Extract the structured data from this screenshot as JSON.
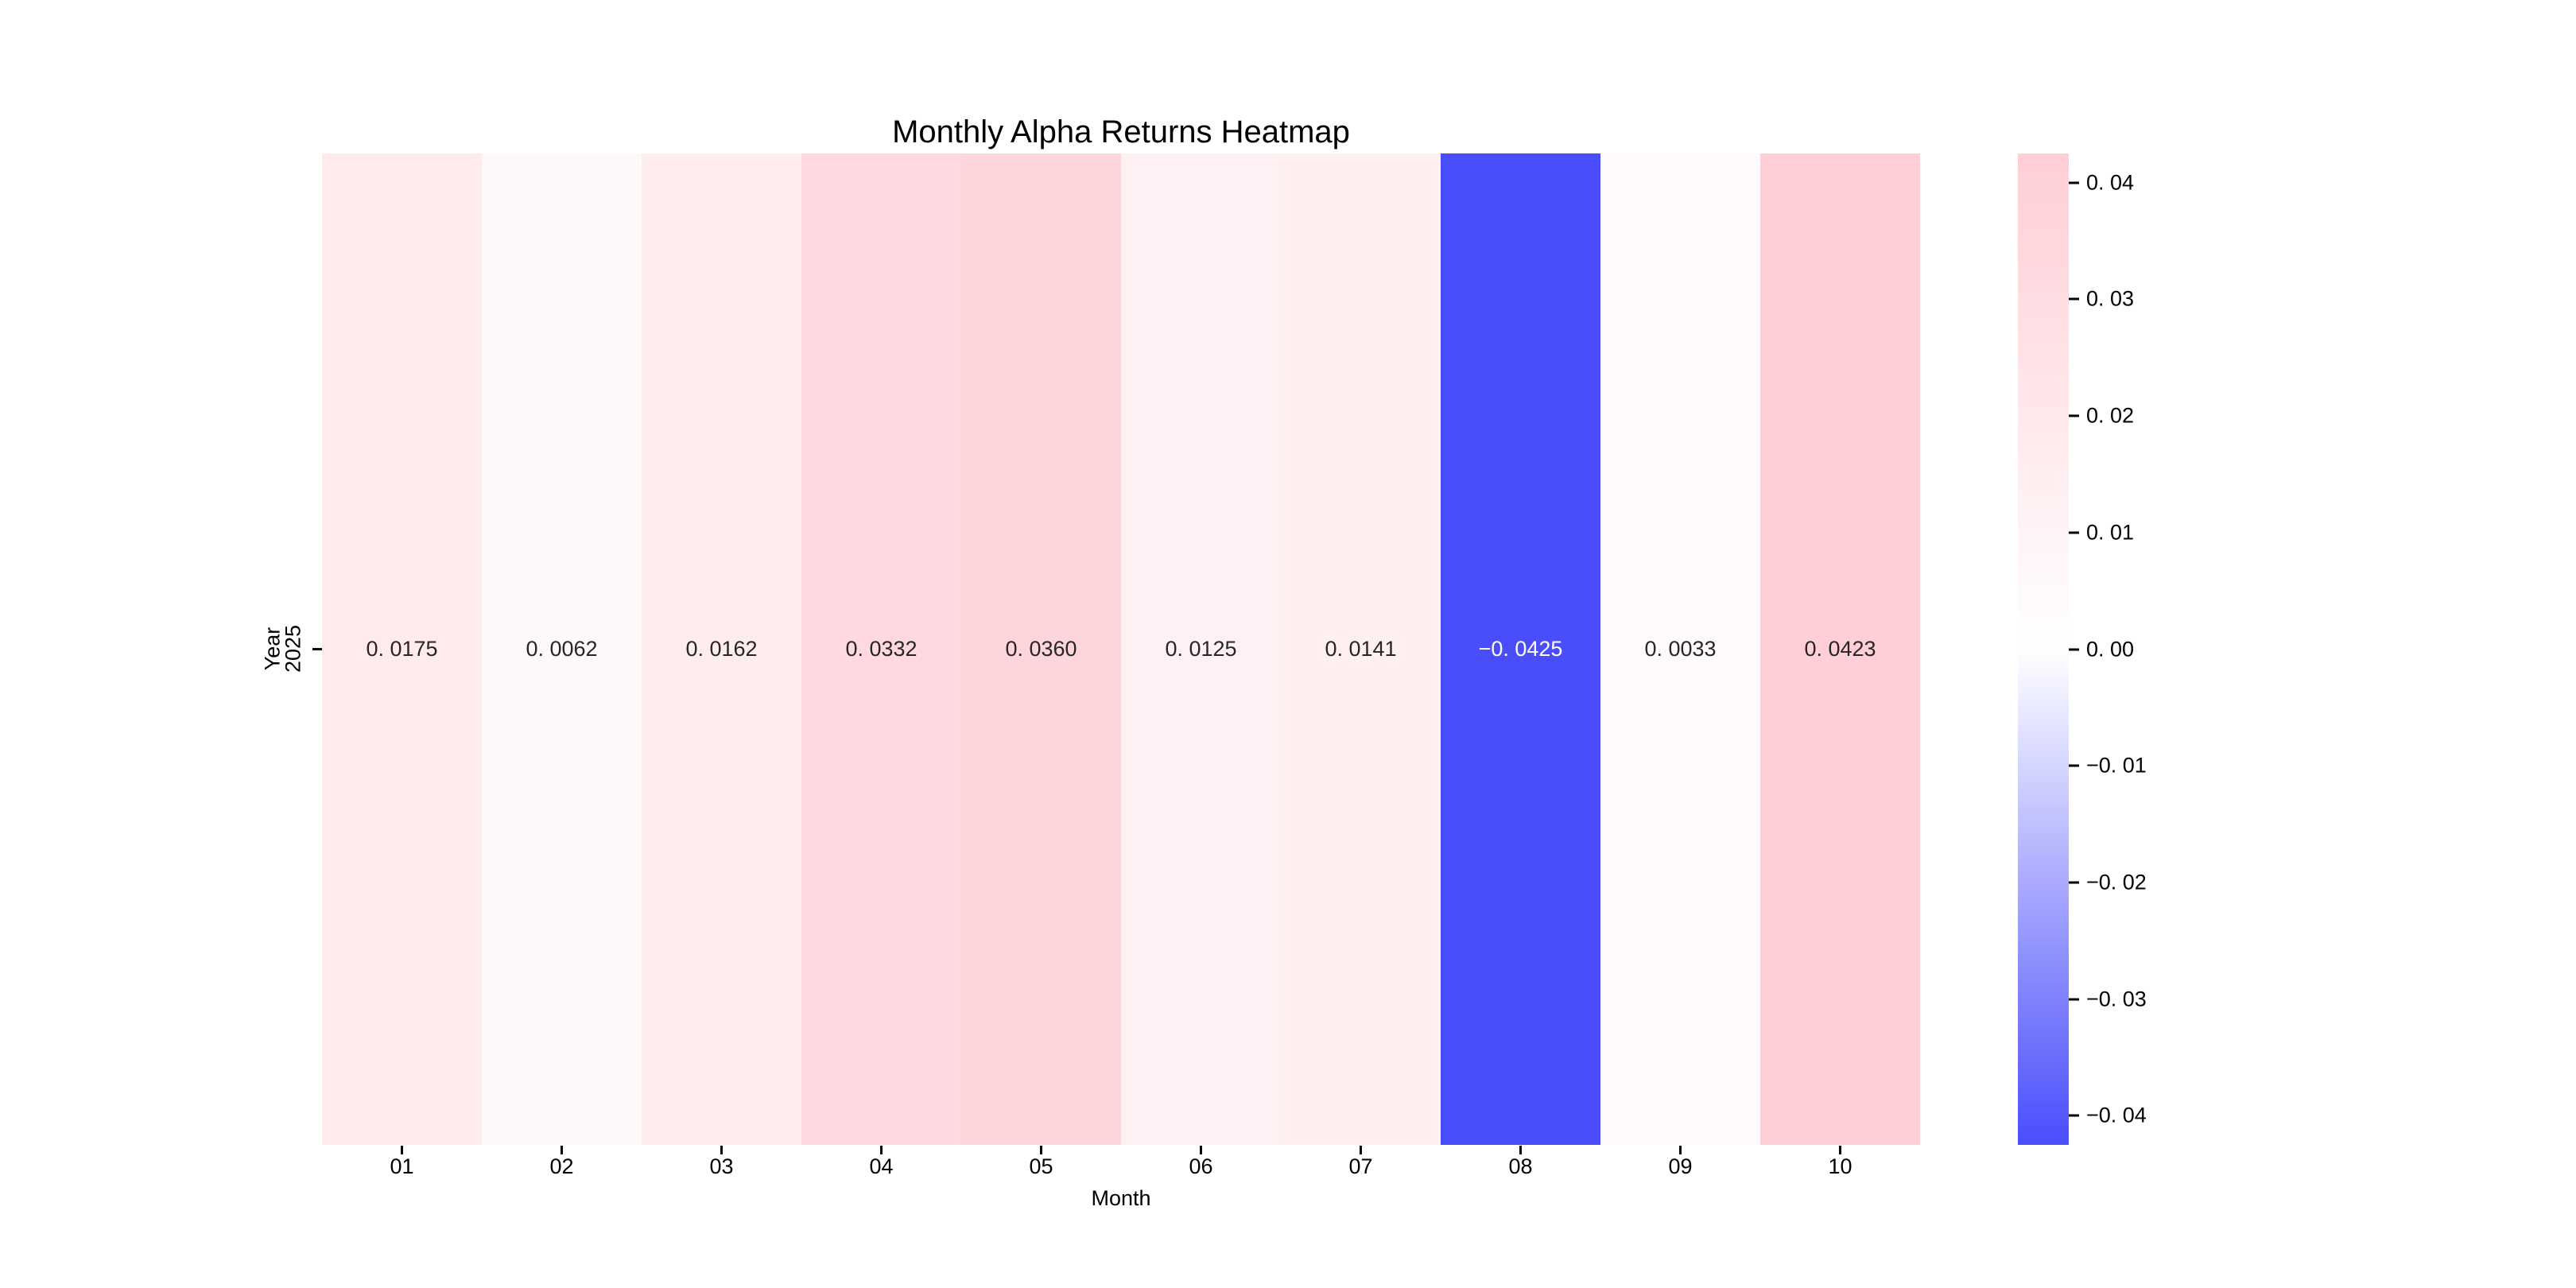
{
  "title": "Monthly Alpha Returns Heatmap",
  "axes": {
    "xlabel": "Month",
    "ylabel": "Year",
    "y_tick": "2025"
  },
  "heatmap": {
    "columns": [
      {
        "month": "01",
        "value": 0.0175,
        "label": "0. 0175"
      },
      {
        "month": "02",
        "value": 0.0062,
        "label": "0. 0062"
      },
      {
        "month": "03",
        "value": 0.0162,
        "label": "0. 0162"
      },
      {
        "month": "04",
        "value": 0.0332,
        "label": "0. 0332"
      },
      {
        "month": "05",
        "value": 0.036,
        "label": "0. 0360"
      },
      {
        "month": "06",
        "value": 0.0125,
        "label": "0. 0125"
      },
      {
        "month": "07",
        "value": 0.0141,
        "label": "0. 0141"
      },
      {
        "month": "08",
        "value": -0.0425,
        "label": "−0. 0425"
      },
      {
        "month": "09",
        "value": 0.0033,
        "label": "0. 0033"
      },
      {
        "month": "10",
        "value": 0.0423,
        "label": "0. 0423"
      }
    ]
  },
  "colorbar": {
    "vmax": 0.0425,
    "vmin": -0.0425,
    "ticks": [
      {
        "value": 0.04,
        "label": "0. 04"
      },
      {
        "value": 0.03,
        "label": "0. 03"
      },
      {
        "value": 0.02,
        "label": "0. 02"
      },
      {
        "value": 0.01,
        "label": "0. 01"
      },
      {
        "value": 0.0,
        "label": "0. 00"
      },
      {
        "value": -0.01,
        "label": "−0. 01"
      },
      {
        "value": -0.02,
        "label": "−0. 02"
      },
      {
        "value": -0.03,
        "label": "−0. 03"
      },
      {
        "value": -0.04,
        "label": "−0. 04"
      }
    ]
  },
  "colors": {
    "positive_end": "#FFCED6",
    "midpoint": "#FFFFFF",
    "negative_end": "#4A4DFC",
    "annot_dark": "#262626",
    "annot_light": "#FFFFFF",
    "axis_text": "#000000"
  },
  "chart_data": {
    "type": "heatmap",
    "title": "Monthly Alpha Returns Heatmap",
    "xlabel": "Month",
    "ylabel": "Year",
    "x_categories": [
      "01",
      "02",
      "03",
      "04",
      "05",
      "06",
      "07",
      "08",
      "09",
      "10"
    ],
    "y_categories": [
      "2025"
    ],
    "values": [
      [
        0.0175,
        0.0062,
        0.0162,
        0.0332,
        0.036,
        0.0125,
        0.0141,
        -0.0425,
        0.0033,
        0.0423
      ]
    ],
    "vmin": -0.0425,
    "vmax": 0.0425,
    "colorbar_ticks": [
      0.04,
      0.03,
      0.02,
      0.01,
      0.0,
      -0.01,
      -0.02,
      -0.03,
      -0.04
    ],
    "colormap": "diverging blue-white-pink",
    "legend_position": "right-colorbar",
    "grid": false,
    "annotated": true
  }
}
